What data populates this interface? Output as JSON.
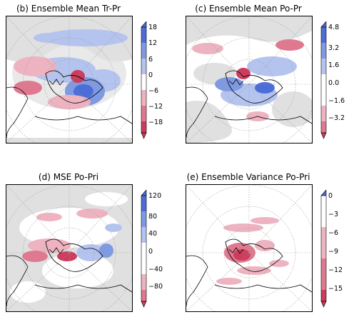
{
  "palette": {
    "neg_strong": "#cf3b5c",
    "neg_mid": "#e0798f",
    "neg_light": "#eeb3c0",
    "neutral": "#e0e0e0",
    "pos_light": "#b4c4ee",
    "pos_mid": "#7f9ae3",
    "pos_strong": "#4b6ed8"
  },
  "chart_data": [
    {
      "id": "b",
      "type": "heatmap",
      "projection": "north-polar-stereographic",
      "title": "(b) Ensemble Mean Tr-Pr",
      "colorbar": {
        "ticks": [
          "18",
          "12",
          "6",
          "0",
          "−6",
          "−12",
          "−18"
        ],
        "ticks_values": [
          18,
          12,
          6,
          0,
          -6,
          -12,
          -18
        ],
        "range": [
          -24,
          24
        ],
        "extend": "both"
      }
    },
    {
      "id": "c",
      "type": "heatmap",
      "projection": "north-polar-stereographic",
      "title": "(c) Ensemble Mean Po-Pr",
      "colorbar": {
        "ticks": [
          "4.8",
          "3.2",
          "1.6",
          "0.0",
          "−1.6",
          "−3.2"
        ],
        "ticks_values": [
          4.8,
          3.2,
          1.6,
          0.0,
          -1.6,
          -3.2
        ],
        "range": [
          -4.0,
          4.8
        ],
        "extend": "both"
      }
    },
    {
      "id": "d",
      "type": "heatmap",
      "projection": "north-polar-stereographic",
      "title": "(d) MSE Po-Pri",
      "colorbar": {
        "ticks": [
          "120",
          "80",
          "40",
          "0",
          "−40",
          "−80"
        ],
        "ticks_values": [
          120,
          80,
          40,
          0,
          -40,
          -80
        ],
        "range": [
          -100,
          120
        ],
        "extend": "both"
      }
    },
    {
      "id": "e",
      "type": "heatmap",
      "projection": "north-polar-stereographic",
      "title": "(e) Ensemble Variance Po-Pri",
      "colorbar": {
        "ticks": [
          "0",
          "−3",
          "−6",
          "−9",
          "−12",
          "−15"
        ],
        "ticks_values": [
          0,
          -3,
          -6,
          -9,
          -12,
          -15
        ],
        "range": [
          -17,
          0
        ],
        "extend": "both"
      }
    }
  ]
}
